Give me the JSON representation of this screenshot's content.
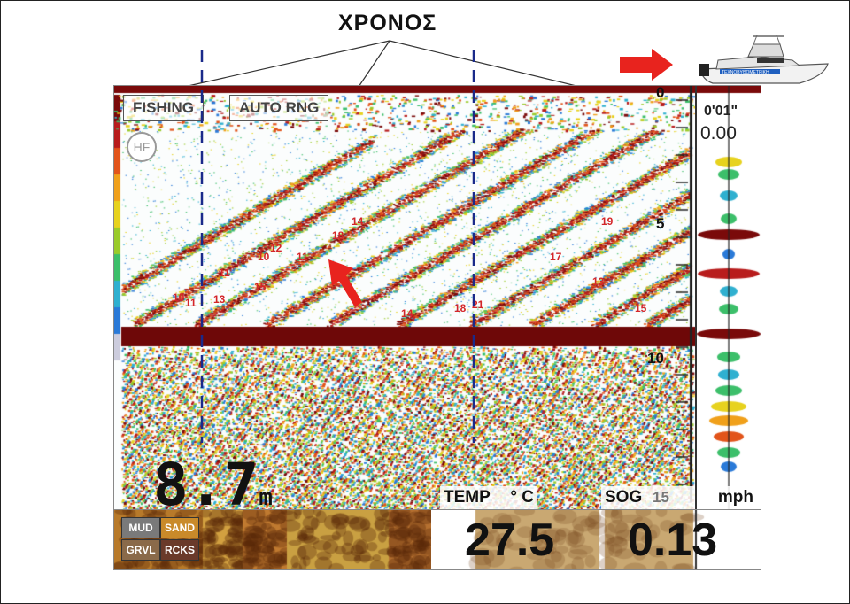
{
  "title": "ΧΡΟΝΟΣ",
  "top_bar": {
    "fishing_label": "FISHING",
    "range_label": "AUTO RNG"
  },
  "hf_badge": "HF",
  "depth": {
    "value": "8.7",
    "unit": "m"
  },
  "right_panel": {
    "time": "0'01\"",
    "speed": "0.00"
  },
  "scale": [
    "0",
    "5",
    "10",
    "15"
  ],
  "fish_numbers": [
    "10",
    "11",
    "13",
    "11",
    "15",
    "10",
    "12",
    "11",
    "18",
    "14",
    "14",
    "18",
    "21",
    "19",
    "17",
    "13",
    "15"
  ],
  "readouts": {
    "temp_label": "TEMP",
    "temp_unit": "° C",
    "temp_value": "27.5",
    "sog_label": "SOG",
    "sog_unit": "mph",
    "sog_value": "0.13"
  },
  "bottom_types": [
    "MUD",
    "SAND",
    "GRVL",
    "RCKS"
  ],
  "boat_text": "ΤΕΧΝΟΒΥΘΟΜΕΤΡΙΚΗ",
  "colors": {
    "accent_red": "#e8231e",
    "dashed_line": "#1a2a8a",
    "bottom_band": "#7a0a0a"
  }
}
